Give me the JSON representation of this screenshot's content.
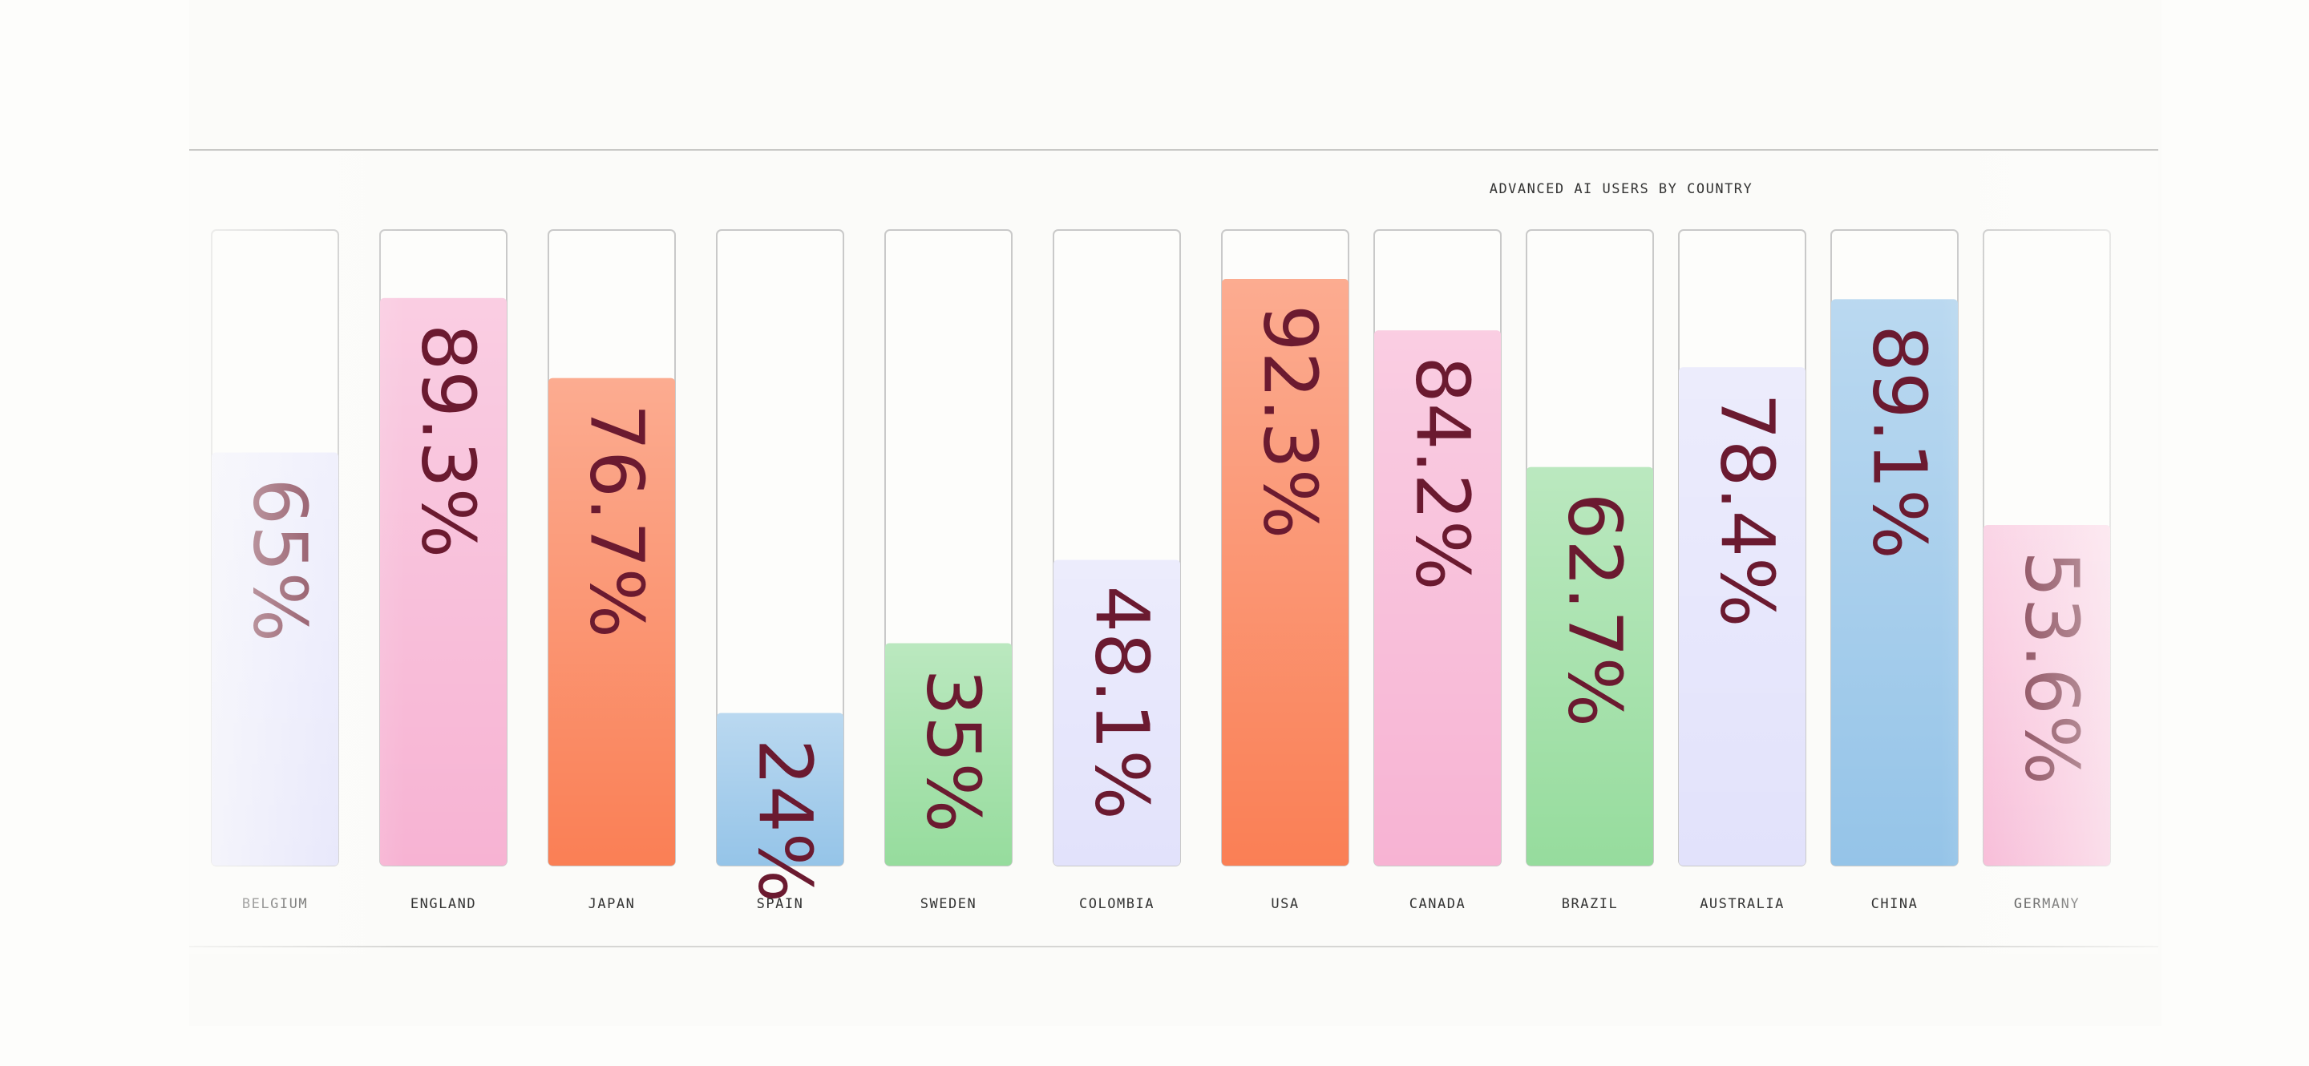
{
  "chart_data": {
    "type": "bar",
    "title": "ADVANCED AI USERS BY COUNTRY",
    "categories": [
      "BELGIUM",
      "ENGLAND",
      "JAPAN",
      "SPAIN",
      "SWEDEN",
      "COLOMBIA",
      "USA",
      "CANADA",
      "BRAZIL",
      "AUSTRALIA",
      "CHINA",
      "GERMANY"
    ],
    "values": [
      65,
      89.3,
      76.7,
      24,
      35,
      48.1,
      92.3,
      84.2,
      62.7,
      78.4,
      89.1,
      53.6
    ],
    "value_labels": [
      "65%",
      "89.3%",
      "76.7%",
      "24%",
      "35%",
      "48.1%",
      "92.3%",
      "84.2%",
      "62.7%",
      "78.4%",
      "89.1%",
      "53.6%"
    ],
    "colors": [
      "#e2e2fb",
      "#f7b3d3",
      "#fa7f55",
      "#95c4e8",
      "#96dc9d",
      "#e2e2fb",
      "#fa7f55",
      "#f7b3d3",
      "#96dc9d",
      "#e2e2fb",
      "#95c4e8",
      "#f7b3d3"
    ],
    "ylim": [
      0,
      100
    ]
  }
}
